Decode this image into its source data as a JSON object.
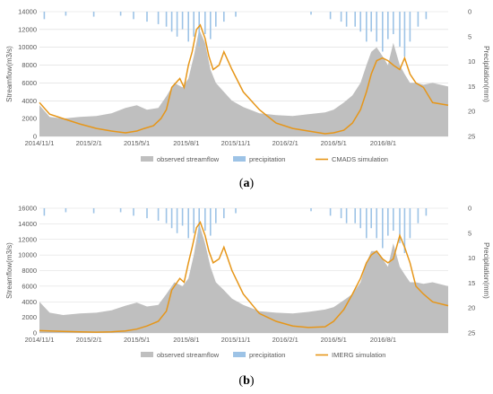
{
  "colors": {
    "observed": "#bfbfbf",
    "precipitation": "#9dc3e6",
    "simulation": "#e69619",
    "grid": "#d9d9d9",
    "axis_text": "#595959"
  },
  "chart_data": [
    {
      "type": "area",
      "panel_label": "a",
      "ylabel": "Streamflow(m3/s)",
      "y2label": "Precipitation(mm)",
      "ylim": [
        0,
        14000
      ],
      "yticks": [
        0,
        2000,
        4000,
        6000,
        8000,
        10000,
        12000,
        14000
      ],
      "y2lim": [
        0,
        25
      ],
      "y2ticks": [
        0,
        5,
        10,
        15,
        20,
        25
      ],
      "y2_inverted": true,
      "grid": true,
      "legend_position": "bottom",
      "x_start": "2014-11-01",
      "x_end": "2016-11-30",
      "xticks": [
        "2014/11/1",
        "2015/2/1",
        "2015/5/1",
        "2015/8/1",
        "2015/11/1",
        "2016/2/1",
        "2016/5/1",
        "2016/8/1"
      ],
      "series": [
        {
          "name": "observed streamflow",
          "kind": "area",
          "x": [
            "2014-11-01",
            "2014-11-20",
            "2014-12-15",
            "2015-01-15",
            "2015-02-15",
            "2015-03-15",
            "2015-04-10",
            "2015-05-01",
            "2015-05-20",
            "2015-06-10",
            "2015-06-25",
            "2015-07-10",
            "2015-07-25",
            "2015-08-05",
            "2015-08-15",
            "2015-08-25",
            "2015-09-05",
            "2015-09-15",
            "2015-09-25",
            "2015-10-10",
            "2015-10-25",
            "2015-11-15",
            "2015-12-15",
            "2016-01-15",
            "2016-02-15",
            "2016-03-15",
            "2016-04-15",
            "2016-05-01",
            "2016-05-20",
            "2016-06-05",
            "2016-06-20",
            "2016-07-01",
            "2016-07-10",
            "2016-07-20",
            "2016-07-31",
            "2016-08-10",
            "2016-08-20",
            "2016-09-01",
            "2016-09-10",
            "2016-09-20",
            "2016-10-01",
            "2016-10-15",
            "2016-11-01",
            "2016-11-30"
          ],
          "values": [
            3500,
            2200,
            2000,
            2200,
            2300,
            2600,
            3200,
            3500,
            3000,
            3200,
            4500,
            6000,
            5500,
            6500,
            9000,
            12000,
            10500,
            7500,
            6000,
            5000,
            4000,
            3300,
            2600,
            2400,
            2300,
            2500,
            2700,
            3000,
            3800,
            4600,
            6000,
            8000,
            9500,
            10000,
            9000,
            8000,
            10500,
            8000,
            7000,
            6000,
            6000,
            5800,
            6000,
            5600
          ]
        },
        {
          "name": "precipitation",
          "kind": "bars",
          "x": [
            "2014-11-10",
            "2014-12-20",
            "2015-02-10",
            "2015-04-01",
            "2015-04-25",
            "2015-05-20",
            "2015-06-10",
            "2015-06-25",
            "2015-07-05",
            "2015-07-15",
            "2015-07-25",
            "2015-08-05",
            "2015-08-15",
            "2015-08-25",
            "2015-09-05",
            "2015-09-15",
            "2015-09-25",
            "2015-10-10",
            "2015-11-01",
            "2016-03-20",
            "2016-04-25",
            "2016-05-15",
            "2016-05-25",
            "2016-06-10",
            "2016-06-20",
            "2016-07-01",
            "2016-07-10",
            "2016-07-20",
            "2016-07-31",
            "2016-08-10",
            "2016-08-20",
            "2016-09-01",
            "2016-09-10",
            "2016-09-20",
            "2016-10-05",
            "2016-10-20"
          ],
          "values": [
            1.5,
            0.8,
            1,
            0.8,
            1.5,
            2,
            2.5,
            3,
            4,
            5,
            3.5,
            6,
            5,
            7,
            4.5,
            5.5,
            3,
            2,
            1,
            0.6,
            1.5,
            2,
            3,
            3,
            4,
            6,
            4,
            6,
            8,
            5.5,
            4.5,
            7,
            9,
            6,
            3,
            1.5
          ]
        },
        {
          "name": "CMADS simulation",
          "kind": "line",
          "x": [
            "2014-11-01",
            "2014-11-20",
            "2014-12-15",
            "2015-01-15",
            "2015-02-15",
            "2015-03-15",
            "2015-04-10",
            "2015-05-01",
            "2015-05-15",
            "2015-06-01",
            "2015-06-15",
            "2015-06-25",
            "2015-07-05",
            "2015-07-20",
            "2015-07-28",
            "2015-08-05",
            "2015-08-12",
            "2015-08-20",
            "2015-08-27",
            "2015-09-05",
            "2015-09-12",
            "2015-09-20",
            "2015-10-01",
            "2015-10-10",
            "2015-10-25",
            "2015-11-15",
            "2015-12-15",
            "2016-01-15",
            "2016-02-15",
            "2016-03-15",
            "2016-04-15",
            "2016-05-01",
            "2016-05-20",
            "2016-06-05",
            "2016-06-20",
            "2016-07-01",
            "2016-07-10",
            "2016-07-20",
            "2016-07-31",
            "2016-08-10",
            "2016-08-20",
            "2016-09-01",
            "2016-09-10",
            "2016-09-20",
            "2016-10-01",
            "2016-10-15",
            "2016-11-01",
            "2016-11-30"
          ],
          "values": [
            3800,
            2500,
            2000,
            1400,
            900,
            600,
            400,
            600,
            900,
            1200,
            2000,
            3000,
            5500,
            6500,
            5500,
            8000,
            9500,
            12000,
            12500,
            11000,
            9000,
            7500,
            8000,
            9500,
            7500,
            5000,
            3000,
            1500,
            900,
            600,
            300,
            400,
            700,
            1500,
            3000,
            5000,
            7000,
            8500,
            8800,
            8500,
            8000,
            7500,
            8800,
            7000,
            6000,
            5500,
            3800,
            3500
          ]
        }
      ],
      "legend": [
        "observed streamflow",
        "precipitation",
        "CMADS simulation"
      ]
    },
    {
      "type": "area",
      "panel_label": "b",
      "ylabel": "Streamflow(m3/s)",
      "y2label": "Precipitation(mm)",
      "ylim": [
        0,
        16000
      ],
      "yticks": [
        0,
        2000,
        4000,
        6000,
        8000,
        10000,
        12000,
        14000,
        16000
      ],
      "y2lim": [
        0,
        25
      ],
      "y2ticks": [
        0,
        5,
        10,
        15,
        20,
        25
      ],
      "y2_inverted": true,
      "grid": true,
      "legend_position": "bottom",
      "x_start": "2014-11-01",
      "x_end": "2016-11-30",
      "xticks": [
        "2014/11/1",
        "2015/2/1",
        "2015/5/1",
        "2015/8/1",
        "2015/11/1",
        "2016/2/1",
        "2016/5/1",
        "2016/8/1"
      ],
      "series": [
        {
          "name": "observed streamflow",
          "kind": "area",
          "x": [
            "2014-11-01",
            "2014-11-20",
            "2014-12-15",
            "2015-01-15",
            "2015-02-15",
            "2015-03-15",
            "2015-04-10",
            "2015-05-01",
            "2015-05-20",
            "2015-06-10",
            "2015-06-25",
            "2015-07-10",
            "2015-07-25",
            "2015-08-05",
            "2015-08-15",
            "2015-08-25",
            "2015-09-05",
            "2015-09-15",
            "2015-09-25",
            "2015-10-10",
            "2015-10-25",
            "2015-11-15",
            "2015-12-15",
            "2016-01-15",
            "2016-02-15",
            "2016-03-15",
            "2016-04-15",
            "2016-05-01",
            "2016-05-20",
            "2016-06-05",
            "2016-06-20",
            "2016-07-01",
            "2016-07-10",
            "2016-07-20",
            "2016-07-31",
            "2016-08-10",
            "2016-08-20",
            "2016-09-01",
            "2016-09-10",
            "2016-09-20",
            "2016-10-01",
            "2016-10-15",
            "2016-11-01",
            "2016-11-30"
          ],
          "values": [
            4000,
            2600,
            2300,
            2500,
            2600,
            2900,
            3500,
            3900,
            3400,
            3600,
            5000,
            6500,
            6000,
            7000,
            10000,
            14000,
            11500,
            8500,
            6500,
            5500,
            4400,
            3600,
            2800,
            2600,
            2500,
            2700,
            3000,
            3300,
            4200,
            5000,
            6500,
            9000,
            10500,
            10500,
            9500,
            8500,
            11500,
            8500,
            7500,
            6500,
            6500,
            6300,
            6500,
            6000
          ]
        },
        {
          "name": "precipitation",
          "kind": "bars",
          "x": [
            "2014-11-10",
            "2014-12-20",
            "2015-02-10",
            "2015-04-01",
            "2015-04-25",
            "2015-05-20",
            "2015-06-10",
            "2015-06-25",
            "2015-07-05",
            "2015-07-15",
            "2015-07-25",
            "2015-08-05",
            "2015-08-15",
            "2015-08-25",
            "2015-09-05",
            "2015-09-15",
            "2015-09-25",
            "2015-10-10",
            "2015-11-01",
            "2016-03-20",
            "2016-04-25",
            "2016-05-15",
            "2016-05-25",
            "2016-06-10",
            "2016-06-20",
            "2016-07-01",
            "2016-07-10",
            "2016-07-20",
            "2016-07-31",
            "2016-08-10",
            "2016-08-20",
            "2016-09-01",
            "2016-09-10",
            "2016-09-20",
            "2016-10-05",
            "2016-10-20"
          ],
          "values": [
            1.5,
            0.8,
            1,
            0.8,
            1.5,
            2,
            2.5,
            3,
            4,
            5,
            3.5,
            6,
            5,
            7,
            4.5,
            5.5,
            3,
            2,
            1,
            0.6,
            1.5,
            2,
            3,
            3,
            4,
            6,
            4,
            6,
            8,
            5.5,
            4.5,
            7,
            9,
            6,
            3,
            1.5
          ]
        },
        {
          "name": "IMERG simulation",
          "kind": "line",
          "x": [
            "2014-11-01",
            "2014-12-15",
            "2015-01-15",
            "2015-02-15",
            "2015-03-15",
            "2015-04-10",
            "2015-05-01",
            "2015-05-20",
            "2015-06-10",
            "2015-06-25",
            "2015-07-05",
            "2015-07-20",
            "2015-07-28",
            "2015-08-05",
            "2015-08-12",
            "2015-08-20",
            "2015-08-27",
            "2015-09-05",
            "2015-09-12",
            "2015-09-20",
            "2015-10-01",
            "2015-10-10",
            "2015-10-25",
            "2015-11-15",
            "2015-12-15",
            "2016-01-15",
            "2016-02-15",
            "2016-03-15",
            "2016-04-15",
            "2016-05-01",
            "2016-05-20",
            "2016-06-05",
            "2016-06-20",
            "2016-07-01",
            "2016-07-10",
            "2016-07-20",
            "2016-07-31",
            "2016-08-10",
            "2016-08-20",
            "2016-09-01",
            "2016-09-10",
            "2016-09-20",
            "2016-10-01",
            "2016-10-15",
            "2016-11-01",
            "2016-11-30"
          ],
          "values": [
            300,
            200,
            150,
            100,
            150,
            250,
            500,
            900,
            1500,
            2800,
            5500,
            7000,
            6500,
            9000,
            11000,
            13500,
            14200,
            12500,
            10500,
            9000,
            9500,
            11000,
            8000,
            5000,
            2500,
            1500,
            900,
            700,
            800,
            1500,
            3000,
            5000,
            7000,
            9000,
            10000,
            10500,
            9500,
            9000,
            9500,
            12500,
            11000,
            9000,
            6000,
            5000,
            4000,
            3500
          ]
        }
      ],
      "legend": [
        "observed streamflow",
        "precipitation",
        "IMERG simulation"
      ]
    }
  ]
}
